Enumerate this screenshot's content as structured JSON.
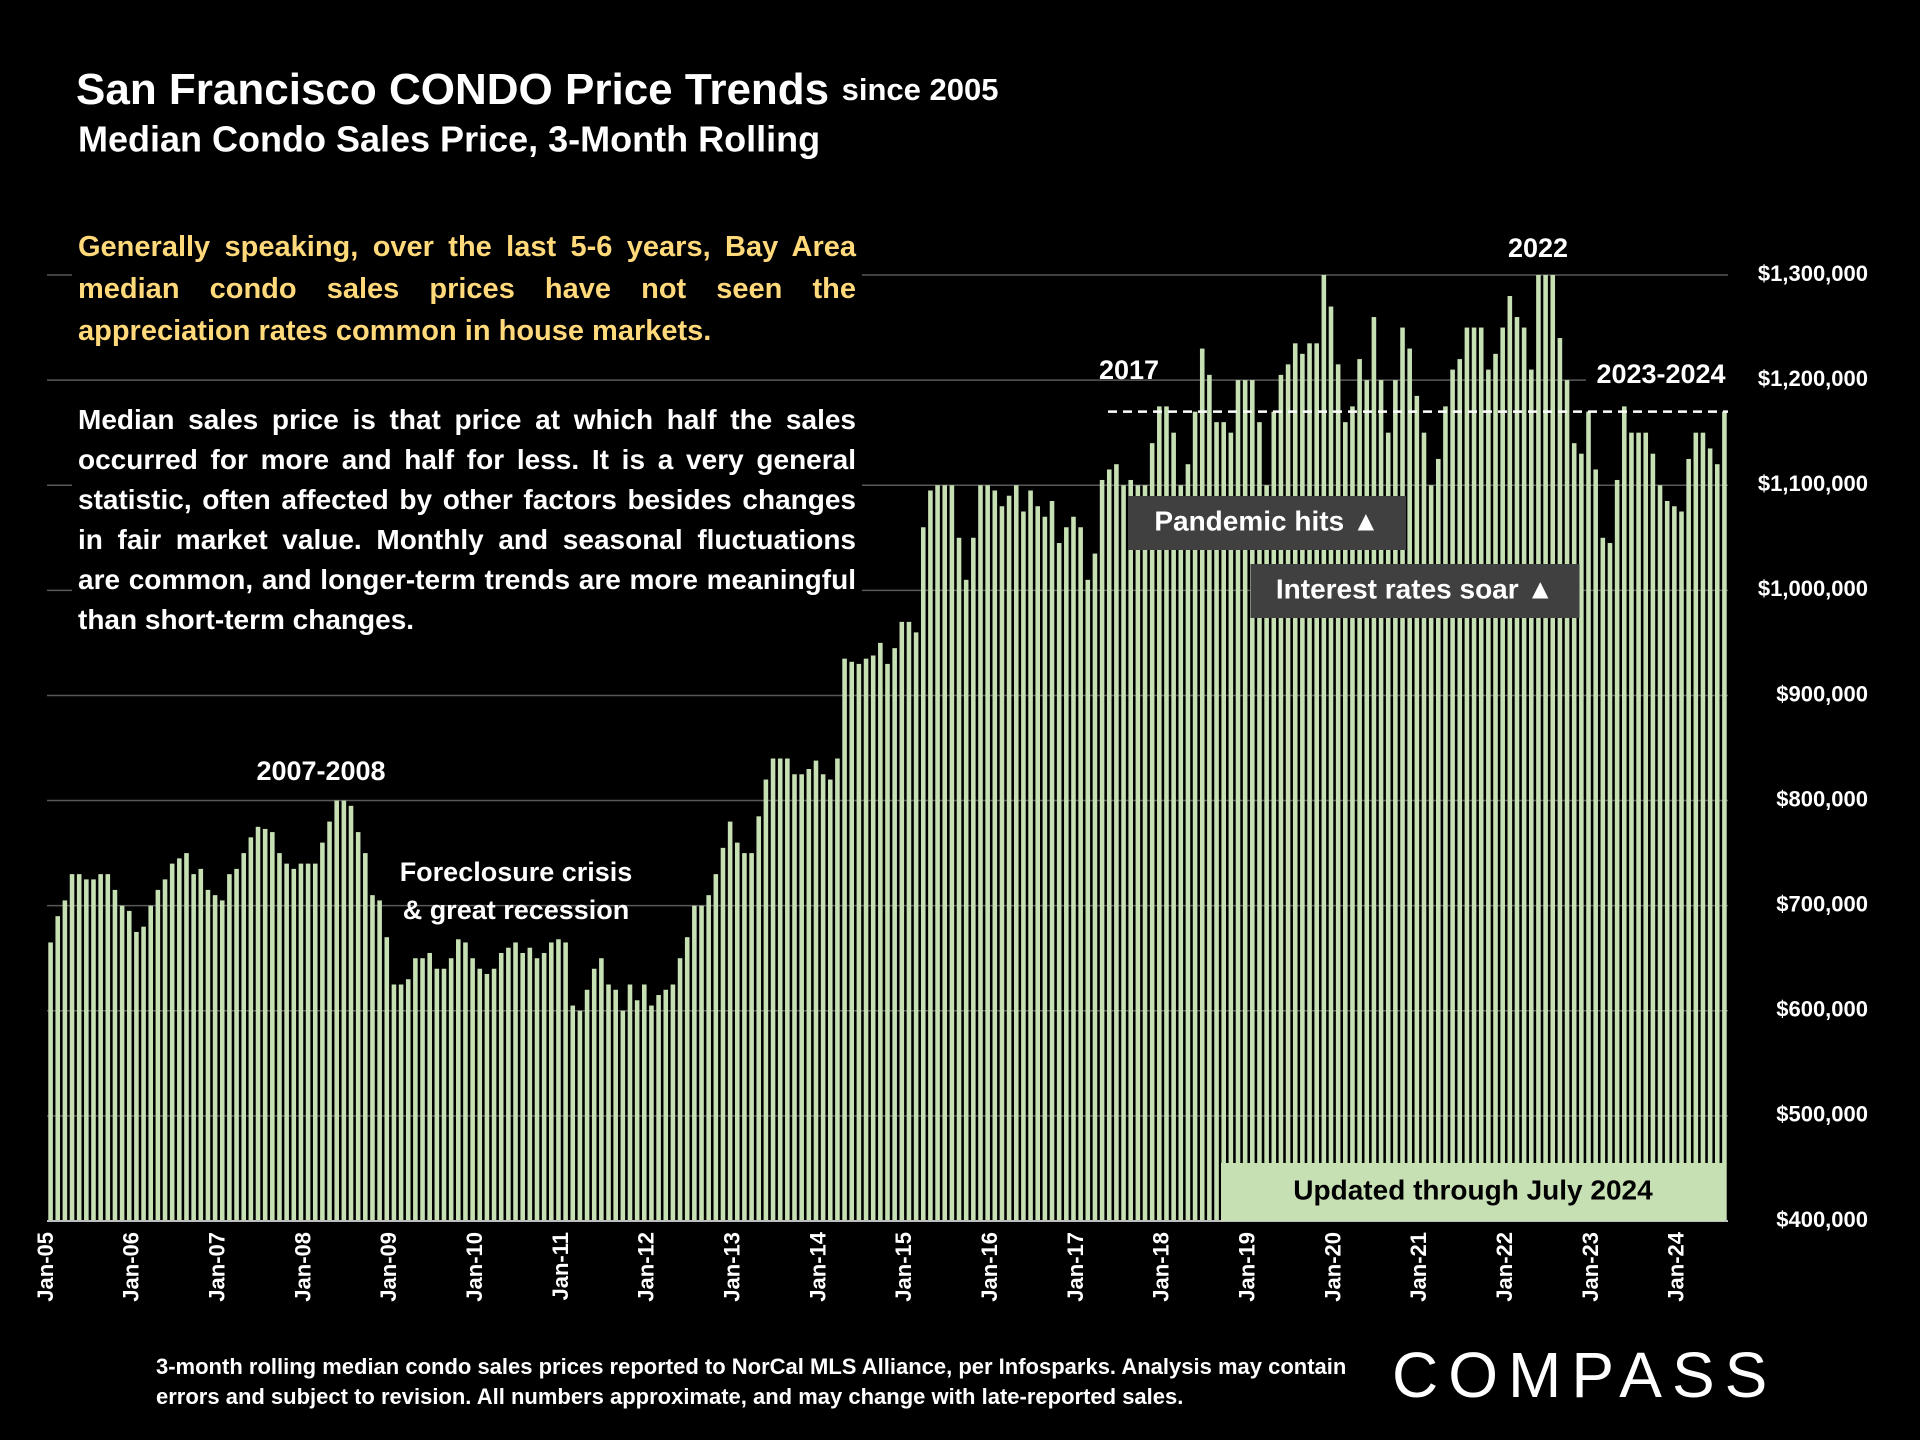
{
  "chart_data": {
    "type": "bar",
    "title": "San Francisco CONDO Price Trends",
    "title_note": "since 2005",
    "subtitle": "Median Condo Sales Price, 3-Month Rolling",
    "intro": "Generally speaking, over the last 5-6 years, Bay Area median condo sales prices have not seen the appreciation rates common in house markets.",
    "body": "Median sales price is that price at which half the sales occurred for more and half for less. It is a very general statistic, often affected by other factors besides changes in fair market value. Monthly and seasonal fluctuations are common, and longer-term trends are more meaningful than short-term changes.",
    "footnote": "3-month rolling median condo sales prices reported to NorCal MLS Alliance, per Infosparks. Analysis may contain errors and subject to revision. All numbers approximate, and may change with late-reported sales.",
    "logo": "COMPASS",
    "annotations": [
      {
        "text": "2007-2008"
      },
      {
        "text": "Foreclosure crisis"
      },
      {
        "text": "& great recession"
      },
      {
        "text": "2017"
      },
      {
        "text": "2022"
      },
      {
        "text": "2023-2024"
      },
      {
        "text": "Pandemic hits ▲"
      },
      {
        "text": "Interest rates soar ▲"
      },
      {
        "text": "Updated through July 2024"
      }
    ],
    "reference_value": 1170000,
    "color": "#c6e0b4",
    "grid": true,
    "ylim": [
      400000,
      1300000
    ],
    "yticks": [
      {
        "value": 400000,
        "label": "$400,000"
      },
      {
        "value": 500000,
        "label": "$500,000"
      },
      {
        "value": 600000,
        "label": "$600,000"
      },
      {
        "value": 700000,
        "label": "$700,000"
      },
      {
        "value": 800000,
        "label": "$800,000"
      },
      {
        "value": 900000,
        "label": "$900,000"
      },
      {
        "value": 1000000,
        "label": "$1,000,000"
      },
      {
        "value": 1100000,
        "label": "$1,100,000"
      },
      {
        "value": 1200000,
        "label": "$1,200,000"
      },
      {
        "value": 1300000,
        "label": "$1,300,000"
      }
    ],
    "categories": [
      "Jan-05",
      null,
      null,
      null,
      null,
      null,
      null,
      null,
      null,
      null,
      null,
      null,
      "Jan-06",
      null,
      null,
      null,
      null,
      null,
      null,
      null,
      null,
      null,
      null,
      null,
      "Jan-07",
      null,
      null,
      null,
      null,
      null,
      null,
      null,
      null,
      null,
      null,
      null,
      "Jan-08",
      null,
      null,
      null,
      null,
      null,
      null,
      null,
      null,
      null,
      null,
      null,
      "Jan-09",
      null,
      null,
      null,
      null,
      null,
      null,
      null,
      null,
      null,
      null,
      null,
      "Jan-10",
      null,
      null,
      null,
      null,
      null,
      null,
      null,
      null,
      null,
      null,
      null,
      "Jan-11",
      null,
      null,
      null,
      null,
      null,
      null,
      null,
      null,
      null,
      null,
      null,
      "Jan-12",
      null,
      null,
      null,
      null,
      null,
      null,
      null,
      null,
      null,
      null,
      null,
      "Jan-13",
      null,
      null,
      null,
      null,
      null,
      null,
      null,
      null,
      null,
      null,
      null,
      "Jan-14",
      null,
      null,
      null,
      null,
      null,
      null,
      null,
      null,
      null,
      null,
      null,
      "Jan-15",
      null,
      null,
      null,
      null,
      null,
      null,
      null,
      null,
      null,
      null,
      null,
      "Jan-16",
      null,
      null,
      null,
      null,
      null,
      null,
      null,
      null,
      null,
      null,
      null,
      "Jan-17",
      null,
      null,
      null,
      null,
      null,
      null,
      null,
      null,
      null,
      null,
      null,
      "Jan-18",
      null,
      null,
      null,
      null,
      null,
      null,
      null,
      null,
      null,
      null,
      null,
      "Jan-19",
      null,
      null,
      null,
      null,
      null,
      null,
      null,
      null,
      null,
      null,
      null,
      "Jan-20",
      null,
      null,
      null,
      null,
      null,
      null,
      null,
      null,
      null,
      null,
      null,
      "Jan-21",
      null,
      null,
      null,
      null,
      null,
      null,
      null,
      null,
      null,
      null,
      null,
      "Jan-22",
      null,
      null,
      null,
      null,
      null,
      null,
      null,
      null,
      null,
      null,
      null,
      "Jan-23",
      null,
      null,
      null,
      null,
      null,
      null,
      null,
      null,
      null,
      null,
      null,
      "Jan-24",
      null,
      null,
      null,
      null,
      null,
      null
    ],
    "values": [
      665000,
      690000,
      705000,
      730000,
      730000,
      725000,
      725000,
      730000,
      730000,
      715000,
      700000,
      695000,
      675000,
      680000,
      700000,
      715000,
      725000,
      740000,
      745000,
      750000,
      730000,
      735000,
      715000,
      710000,
      705000,
      730000,
      735000,
      750000,
      765000,
      775000,
      773000,
      770000,
      750000,
      740000,
      735000,
      740000,
      740000,
      740000,
      760000,
      780000,
      800000,
      800000,
      795000,
      770000,
      750000,
      710000,
      705000,
      670000,
      625000,
      625000,
      630000,
      650000,
      650000,
      655000,
      640000,
      640000,
      650000,
      668000,
      665000,
      650000,
      640000,
      635000,
      640000,
      655000,
      660000,
      665000,
      655000,
      660000,
      650000,
      655000,
      665000,
      668000,
      665000,
      605000,
      600000,
      620000,
      640000,
      650000,
      625000,
      620000,
      600000,
      625000,
      610000,
      625000,
      605000,
      615000,
      620000,
      625000,
      650000,
      670000,
      700000,
      700000,
      710000,
      730000,
      755000,
      780000,
      760000,
      750000,
      750000,
      785000,
      820000,
      840000,
      840000,
      840000,
      825000,
      825000,
      830000,
      838000,
      825000,
      820000,
      840000,
      935000,
      932000,
      930000,
      935000,
      938000,
      950000,
      930000,
      945000,
      970000,
      970000,
      960000,
      1060000,
      1095000,
      1100000,
      1100000,
      1100000,
      1050000,
      1010000,
      1050000,
      1100000,
      1100000,
      1095000,
      1080000,
      1090000,
      1100000,
      1075000,
      1095000,
      1080000,
      1070000,
      1085000,
      1045000,
      1060000,
      1070000,
      1060000,
      1010000,
      1035000,
      1105000,
      1115000,
      1120000,
      1100000,
      1105000,
      1100000,
      1100000,
      1140000,
      1175000,
      1175000,
      1150000,
      1100000,
      1120000,
      1170000,
      1230000,
      1205000,
      1160000,
      1160000,
      1150000,
      1200000,
      1200000,
      1200000,
      1160000,
      1100000,
      1170000,
      1205000,
      1215000,
      1235000,
      1225000,
      1235000,
      1235000,
      1300000,
      1270000,
      1215000,
      1160000,
      1175000,
      1220000,
      1200000,
      1260000,
      1200000,
      1150000,
      1200000,
      1250000,
      1230000,
      1185000,
      1150000,
      1100000,
      1125000,
      1175000,
      1210000,
      1220000,
      1250000,
      1250000,
      1250000,
      1210000,
      1225000,
      1250000,
      1280000,
      1260000,
      1250000,
      1210000,
      1300000,
      1300000,
      1300000,
      1240000,
      1200000,
      1140000,
      1130000,
      1170000,
      1115000,
      1050000,
      1045000,
      1105000,
      1175000,
      1150000,
      1150000,
      1150000,
      1130000,
      1100000,
      1085000,
      1080000,
      1075000,
      1125000,
      1150000,
      1150000,
      1135000,
      1120000,
      1170000
    ]
  }
}
